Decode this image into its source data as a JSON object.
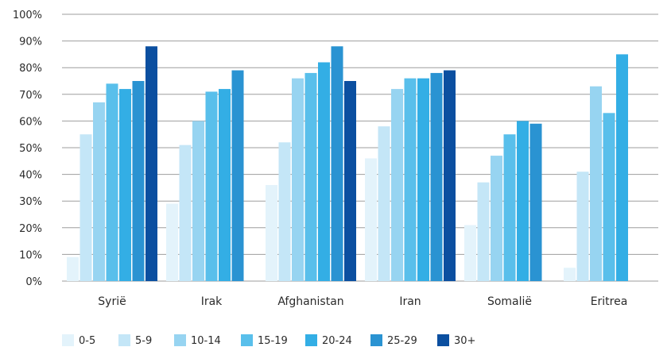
{
  "chart_data": {
    "type": "bar",
    "title": "",
    "xlabel": "",
    "ylabel": "",
    "ylim": [
      0,
      100
    ],
    "y_ticks": [
      "0%",
      "10%",
      "20%",
      "30%",
      "40%",
      "50%",
      "60%",
      "70%",
      "80%",
      "90%",
      "100%"
    ],
    "grid": true,
    "legend_position": "bottom",
    "categories": [
      "Syrië",
      "Irak",
      "Afghanistan",
      "Iran",
      "Somalië",
      "Eritrea"
    ],
    "series": [
      {
        "name": "0-5",
        "color": "#e3f3fb",
        "values": [
          9,
          29,
          36,
          46,
          21,
          5
        ]
      },
      {
        "name": "5-9",
        "color": "#c4e6f7",
        "values": [
          55,
          51,
          52,
          58,
          37,
          41
        ]
      },
      {
        "name": "10-14",
        "color": "#97d4f1",
        "values": [
          67,
          60,
          76,
          72,
          47,
          73
        ]
      },
      {
        "name": "15-19",
        "color": "#59bfeb",
        "values": [
          74,
          71,
          78,
          76,
          55,
          63
        ]
      },
      {
        "name": "20-24",
        "color": "#33aee5",
        "values": [
          72,
          72,
          82,
          76,
          60,
          85
        ]
      },
      {
        "name": "25-29",
        "color": "#2a93d2",
        "values": [
          75,
          79,
          88,
          78,
          59,
          null
        ]
      },
      {
        "name": "30+",
        "color": "#0b4fa0",
        "values": [
          88,
          null,
          75,
          79,
          null,
          null
        ]
      }
    ]
  }
}
